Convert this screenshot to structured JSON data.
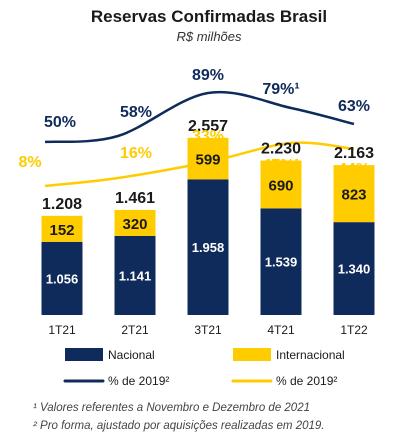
{
  "chart_data": {
    "type": "bar",
    "title": "Reservas Confirmadas Brasil",
    "subtitle": "R$ milhões",
    "categories": [
      "1T21",
      "2T21",
      "3T21",
      "4T21",
      "1T22"
    ],
    "totals": [
      "1.208",
      "1.461",
      "2.557",
      "2.230",
      "2.163"
    ],
    "series": [
      {
        "name": "Nacional",
        "values": [
          1056,
          1141,
          1958,
          1539,
          1340
        ],
        "labels": [
          "1.056",
          "1.141",
          "1.958",
          "1.539",
          "1.340"
        ],
        "color": "#0f2b5b"
      },
      {
        "name": "Internacional",
        "values": [
          152,
          320,
          599,
          690,
          823
        ],
        "labels": [
          "152",
          "320",
          "599",
          "690",
          "823"
        ],
        "color": "#ffcc00"
      }
    ],
    "line_series": [
      {
        "name": "% de 2019²",
        "values": [
          50,
          58,
          89,
          79,
          63
        ],
        "labels": [
          "50%",
          "58%",
          "89%",
          "79%¹",
          "63%"
        ],
        "color": "#0f2b5b"
      },
      {
        "name": "% de 2019²",
        "values": [
          8,
          16,
          33,
          47,
          44
        ],
        "labels": [
          "8%",
          "16%",
          "33%",
          "47%¹",
          "44%"
        ],
        "color": "#ffcc00"
      }
    ],
    "legend_position": "bottom",
    "grid": false
  },
  "notes": [
    "¹ Valores referentes a Novembro e Dezembro de 2021",
    "² Pro forma, ajustado por aquisições realizadas em 2019."
  ]
}
